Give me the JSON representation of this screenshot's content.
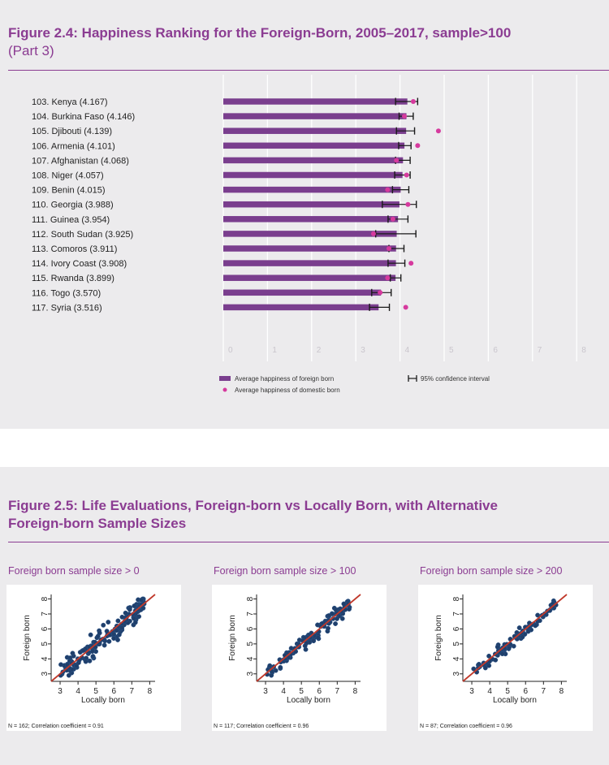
{
  "figure_2_4": {
    "title": "Figure 2.4: Happiness Ranking for the Foreign-Born, 2005–2017, sample>100",
    "subtitle": "(Part 3)",
    "legend": {
      "bar": "Average happiness of foreign born",
      "dot": "Average happiness of domestic born",
      "ci": "95% confidence interval"
    }
  },
  "figure_2_5": {
    "title_line1": "Figure 2.5: Life Evaluations, Foreign-born vs Locally Born, with Alternative",
    "title_line2": "Foreign-born Sample Sizes"
  },
  "colors": {
    "accent": "#8b3c92",
    "bar": "#7a3e8e",
    "dot": "#d63a9e",
    "ci": "#1a1a1a",
    "scatter_point": "#1f3f6b",
    "fit_line": "#c0392b",
    "panel_bg": "#ecebed"
  },
  "chart_data": [
    {
      "type": "bar",
      "title": "Figure 2.4: Happiness Ranking for the Foreign-Born, 2005–2017, sample>100",
      "categories": [
        "103. Kenya (4.167)",
        "104. Burkina Faso (4.146)",
        "105. Djibouti (4.139)",
        "106. Armenia (4.101)",
        "107. Afghanistan (4.068)",
        "108. Niger (4.057)",
        "109. Benin (4.015)",
        "110. Georgia (3.988)",
        "111. Guinea (3.954)",
        "112. South Sudan (3.925)",
        "113. Comoros (3.911)",
        "114. Ivory Coast (3.908)",
        "115. Rwanda (3.899)",
        "116. Togo (3.570)",
        "117. Syria (3.516)"
      ],
      "series": [
        {
          "name": "Average happiness of foreign born",
          "values": [
            4.167,
            4.146,
            4.139,
            4.101,
            4.068,
            4.057,
            4.015,
            3.988,
            3.954,
            3.925,
            3.911,
            3.908,
            3.899,
            3.57,
            3.516
          ]
        },
        {
          "name": "Average happiness of domestic born",
          "values": [
            4.3,
            4.1,
            4.87,
            4.4,
            3.92,
            4.15,
            3.72,
            4.18,
            3.84,
            3.4,
            3.75,
            4.25,
            3.72,
            3.55,
            4.13
          ]
        }
      ],
      "ci_low": [
        3.9,
        3.98,
        3.92,
        3.97,
        3.9,
        3.88,
        3.83,
        3.6,
        3.73,
        3.45,
        3.75,
        3.73,
        3.78,
        3.36,
        3.31
      ],
      "ci_high": [
        4.4,
        4.3,
        4.33,
        4.25,
        4.23,
        4.23,
        4.2,
        4.37,
        4.18,
        4.36,
        4.09,
        4.11,
        4.02,
        3.8,
        3.76
      ],
      "xticks": [
        "0",
        "1",
        "2",
        "3",
        "4",
        "5",
        "6",
        "7",
        "8"
      ],
      "xlim": [
        0,
        8
      ],
      "grid": true,
      "legend_position": "bottom"
    },
    {
      "type": "scatter",
      "title": "Foreign born sample size > 0",
      "xlabel": "Locally born",
      "ylabel": "Foreign born",
      "xticks": [
        "3",
        "4",
        "5",
        "6",
        "7",
        "8"
      ],
      "yticks": [
        "3",
        "4",
        "5",
        "6",
        "7",
        "8"
      ],
      "xlim": [
        2.5,
        8.3
      ],
      "ylim": [
        2.5,
        8.3
      ],
      "n": 162,
      "correlation": 0.91,
      "note": "N = 162; Correlation coefficient = 0.91"
    },
    {
      "type": "scatter",
      "title": "Foreign born sample size > 100",
      "xlabel": "Locally born",
      "ylabel": "Foreign born",
      "xticks": [
        "3",
        "4",
        "5",
        "6",
        "7",
        "8"
      ],
      "yticks": [
        "3",
        "4",
        "5",
        "6",
        "7",
        "8"
      ],
      "xlim": [
        2.5,
        8.3
      ],
      "ylim": [
        2.5,
        8.3
      ],
      "n": 117,
      "correlation": 0.96,
      "note": "N = 117; Correlation coefficient = 0.96"
    },
    {
      "type": "scatter",
      "title": "Foreign born sample size > 200",
      "xlabel": "Locally born",
      "ylabel": "Foreign born",
      "xticks": [
        "3",
        "4",
        "5",
        "6",
        "7",
        "8"
      ],
      "yticks": [
        "3",
        "4",
        "5",
        "6",
        "7",
        "8"
      ],
      "xlim": [
        2.5,
        8.3
      ],
      "ylim": [
        2.5,
        8.3
      ],
      "n": 87,
      "correlation": 0.96,
      "note": "N = 87; Correlation coefficient = 0.96"
    }
  ]
}
